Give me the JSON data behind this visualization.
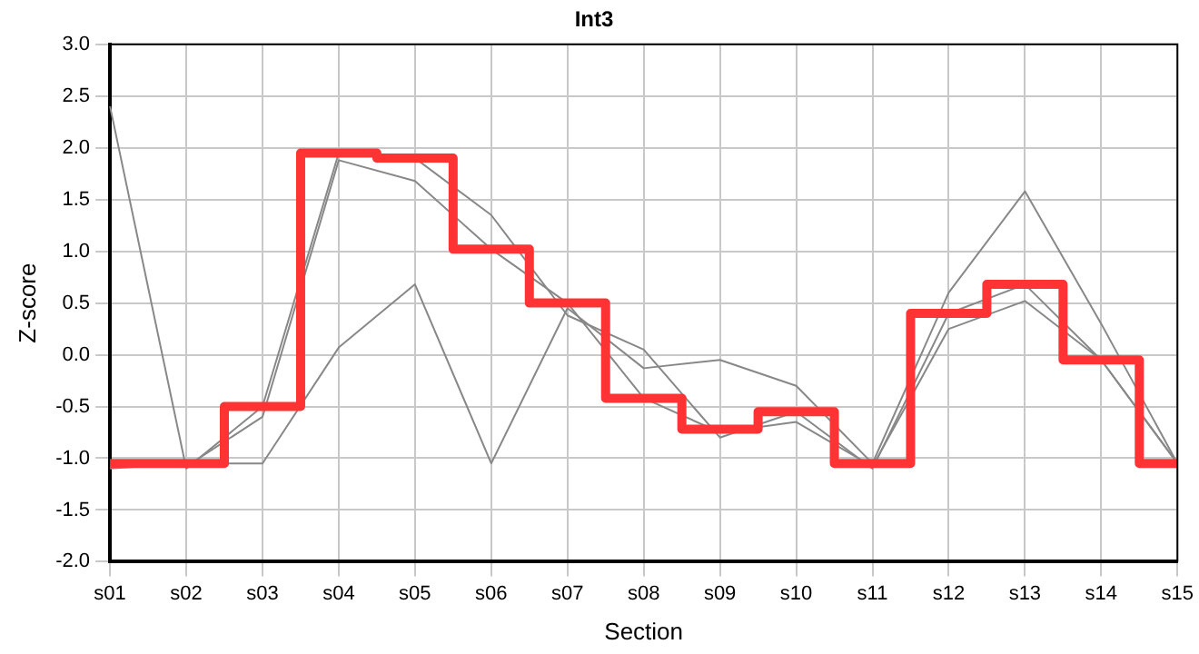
{
  "chart_data": {
    "type": "line",
    "title": "Int3",
    "xlabel": "Section",
    "ylabel": "Z-score",
    "categories": [
      "s01",
      "s02",
      "s03",
      "s04",
      "s05",
      "s06",
      "s07",
      "s08",
      "s09",
      "s10",
      "s11",
      "s12",
      "s13",
      "s14",
      "s15"
    ],
    "series": [
      {
        "color": "#888888",
        "values": [
          -1.1,
          -1.05,
          -1.05,
          0.07,
          0.68,
          -1.05,
          0.45,
          -0.13,
          -0.05,
          -0.3,
          -1.05,
          0.6,
          1.58,
          0.3,
          -1.05
        ]
      },
      {
        "color": "#888888",
        "values": [
          2.4,
          -1.1,
          -0.5,
          1.95,
          1.9,
          1.35,
          0.38,
          0.05,
          -0.8,
          -0.55,
          -1.1,
          0.4,
          0.68,
          -0.05,
          -1.05
        ]
      },
      {
        "color": "#888888",
        "values": [
          -1.08,
          -1.08,
          -0.6,
          1.88,
          1.68,
          1.02,
          0.5,
          -0.42,
          -0.75,
          -0.65,
          -1.08,
          0.25,
          0.52,
          -0.05,
          -1.05
        ]
      },
      {
        "type": "step",
        "color": "#ff3333",
        "values": [
          -1.05,
          -1.05,
          -0.5,
          1.95,
          1.9,
          1.02,
          0.5,
          -0.42,
          -0.72,
          -0.55,
          -1.05,
          0.4,
          0.68,
          -0.05,
          -1.05
        ]
      }
    ],
    "ylim": [
      -2,
      3
    ],
    "yticks": [
      {
        "value": -2,
        "label": "-2.0"
      },
      {
        "value": -1.5,
        "label": "-1.5"
      },
      {
        "value": -1,
        "label": "-1.0"
      },
      {
        "value": -0.5,
        "label": "-0.5"
      },
      {
        "value": 0,
        "label": "0.0"
      },
      {
        "value": 0.5,
        "label": "0.5"
      },
      {
        "value": 1,
        "label": "1.0"
      },
      {
        "value": 1.5,
        "label": "1.5"
      },
      {
        "value": 2,
        "label": "2.0"
      },
      {
        "value": 2.5,
        "label": "2.5"
      },
      {
        "value": 3,
        "label": "3.0"
      }
    ],
    "grid": true,
    "legend": false,
    "marker": "none",
    "line_style": "solid"
  }
}
